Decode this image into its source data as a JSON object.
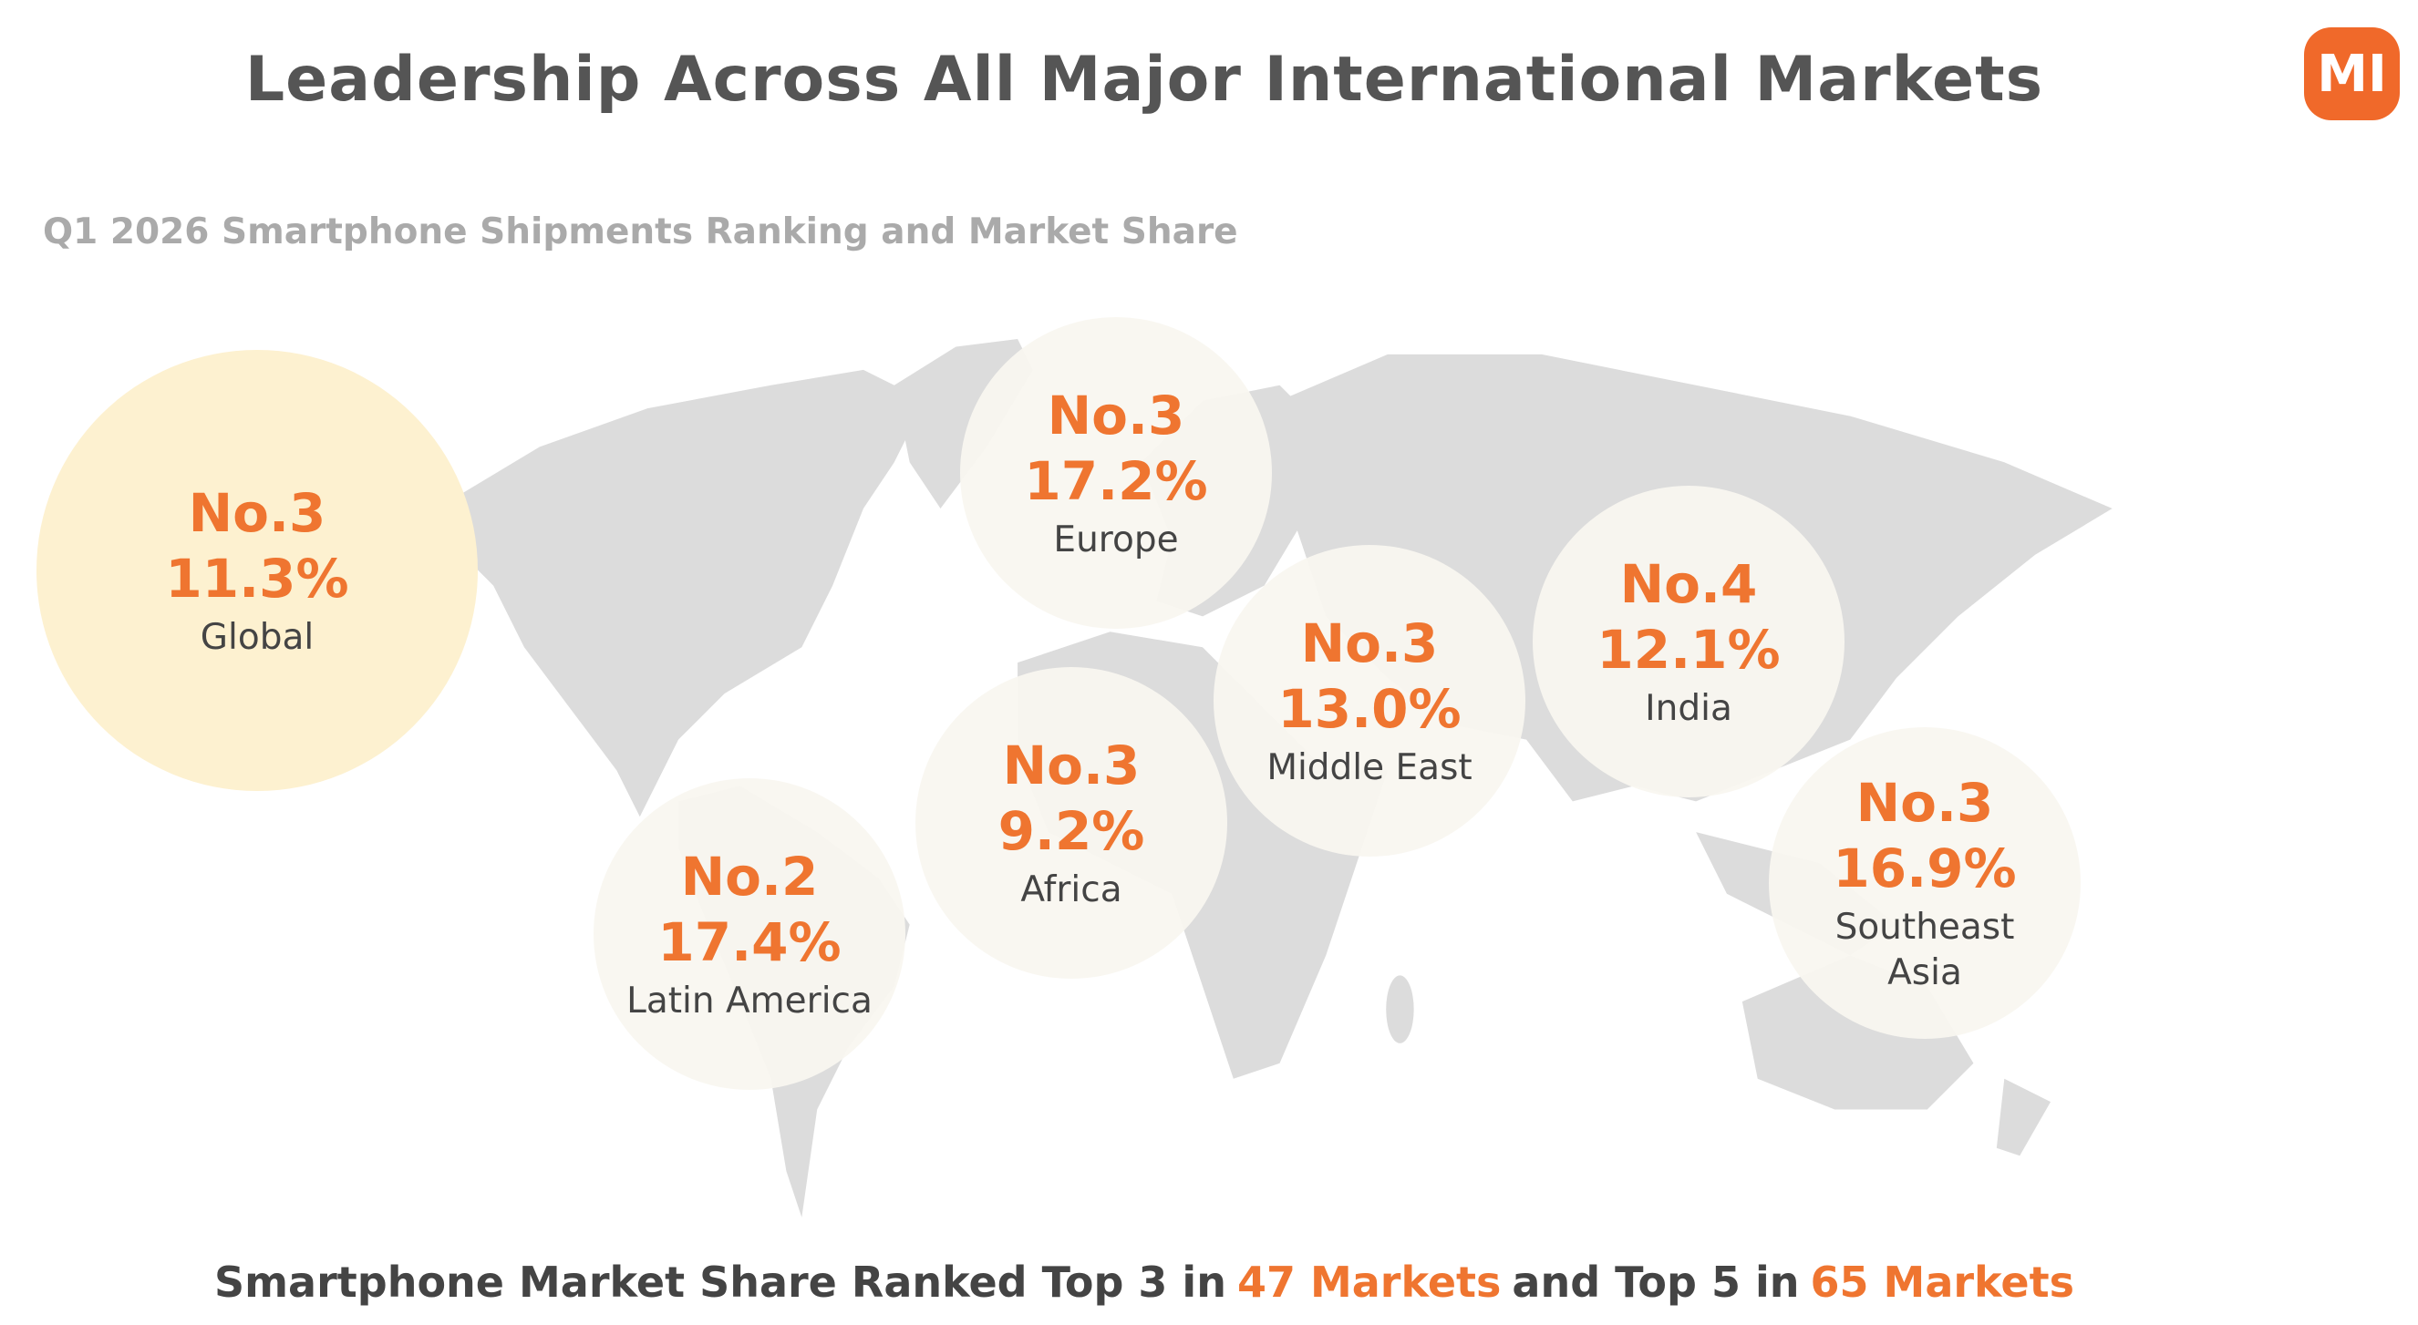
{
  "header": {
    "title": "Leadership Across All Major International Markets",
    "logo": "mi"
  },
  "subtitle": "Q1 2026 Smartphone Shipments Ranking and Market Share",
  "markets": [
    {
      "rank": "No.3",
      "share": "11.3%",
      "region": "Global"
    },
    {
      "rank": "No.3",
      "share": "17.2%",
      "region": "Europe"
    },
    {
      "rank": "No.2",
      "share": "17.4%",
      "region": "Latin America"
    },
    {
      "rank": "No.3",
      "share": "9.2%",
      "region": "Africa"
    },
    {
      "rank": "No.3",
      "share": "13.0%",
      "region": "Middle East"
    },
    {
      "rank": "No.4",
      "share": "12.1%",
      "region": "India"
    },
    {
      "rank": "No.3",
      "share": "16.9%",
      "region": "Southeast Asia"
    }
  ],
  "footer": {
    "lead": "Smartphone Market Share Ranked Top 3 in",
    "markets_top3": "47 Markets",
    "middle": "and Top 5 in",
    "markets_top5": "65 Markets"
  }
}
